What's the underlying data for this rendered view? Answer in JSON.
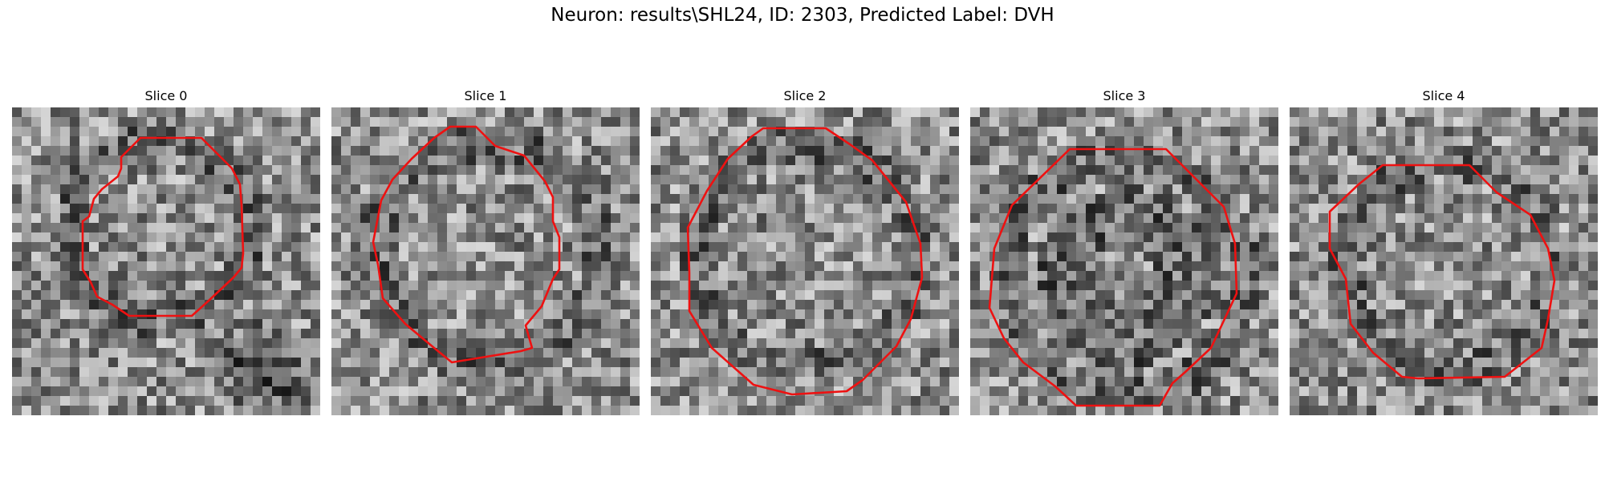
{
  "figure": {
    "title": "Neuron: results\\SHL24, ID: 2303, Predicted Label: DVH"
  },
  "panels": [
    {
      "title": "Slice 0",
      "pattern": "cell-with-dark-blob",
      "contour_color": "#ee1111"
    },
    {
      "title": "Slice 1",
      "pattern": "cell-large",
      "contour_color": "#ee1111"
    },
    {
      "title": "Slice 2",
      "pattern": "cell-large",
      "contour_color": "#ee1111"
    },
    {
      "title": "Slice 3",
      "pattern": "cell-dark-ring",
      "contour_color": "#ee1111"
    },
    {
      "title": "Slice 4",
      "pattern": "cell-medium",
      "contour_color": "#ee1111"
    }
  ]
}
